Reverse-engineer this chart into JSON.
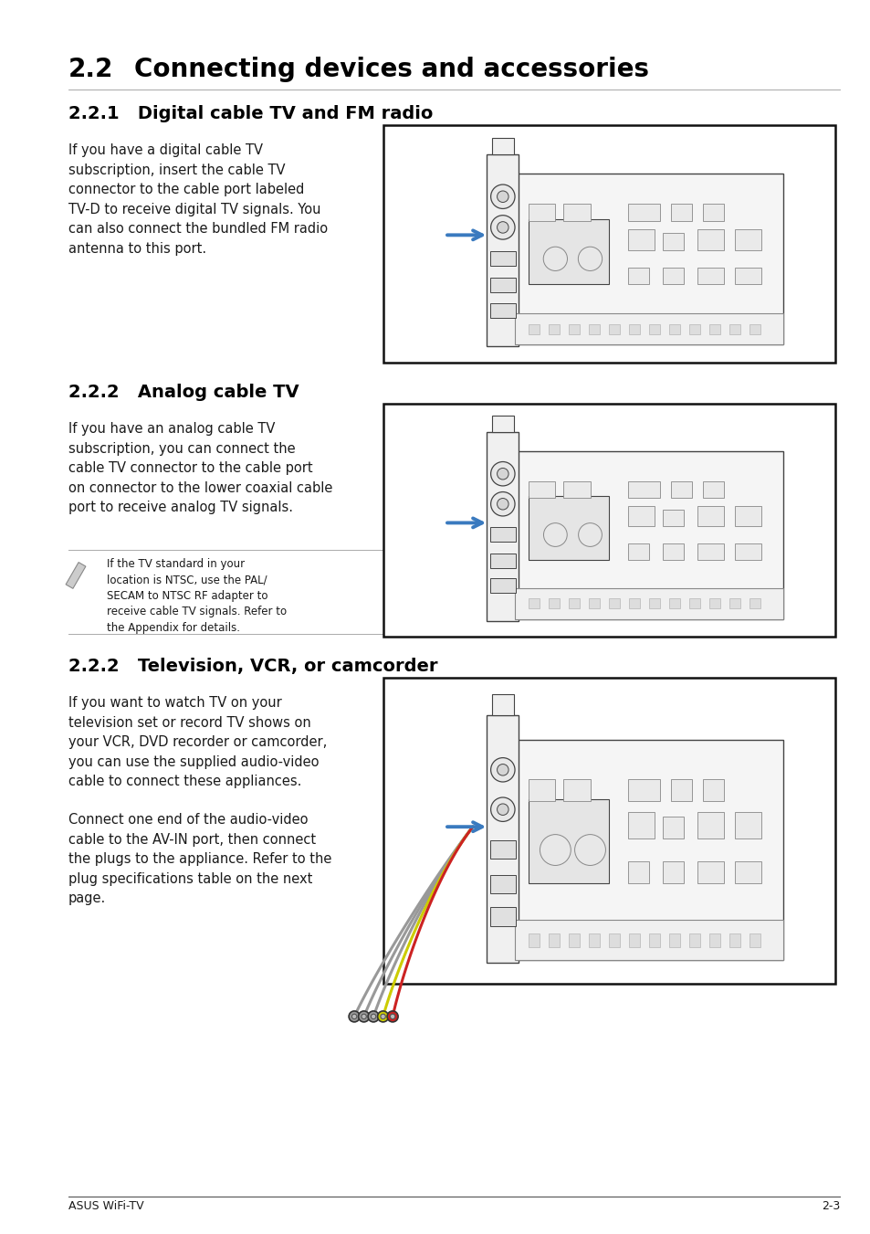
{
  "page_bg": "#ffffff",
  "main_title_num": "2.2",
  "main_title_text": "Connecting devices and accessories",
  "section1_title": "2.2.1   Digital cable TV and FM radio",
  "section1_body": "If you have a digital cable TV\nsubscription, insert the cable TV\nconnector to the cable port labeled\nTV-D to receive digital TV signals. You\ncan also connect the bundled FM radio\nantenna to this port.",
  "section2_title": "2.2.2   Analog cable TV",
  "section2_body": "If you have an analog cable TV\nsubscription, you can connect the\ncable TV connector to the cable port\non connector to the lower coaxial cable\nport to receive analog TV signals.",
  "section2_note": "If the TV standard in your\nlocation is NTSC, use the PAL/\nSECAM to NTSC RF adapter to\nreceive cable TV signals. Refer to\nthe Appendix for details.",
  "section3_title": "2.2.2   Television, VCR, or camcorder",
  "section3_body1": "If you want to watch TV on your\ntelevision set or record TV shows on\nyour VCR, DVD recorder or camcorder,\nyou can use the supplied audio-video\ncable to connect these appliances.",
  "section3_body2": "Connect one end of the audio-video\ncable to the AV-IN port, then connect\nthe plugs to the appliance. Refer to the\nplug specifications table on the next\npage.",
  "footer_left": "ASUS WiFi-TV",
  "footer_right": "2-3",
  "arrow_color": "#3a7abf",
  "text_color": "#1a1a1a",
  "title_color": "#000000",
  "border_color": "#111111",
  "img_bg": "#ffffff",
  "line_color": "#444444",
  "light_line": "#888888"
}
